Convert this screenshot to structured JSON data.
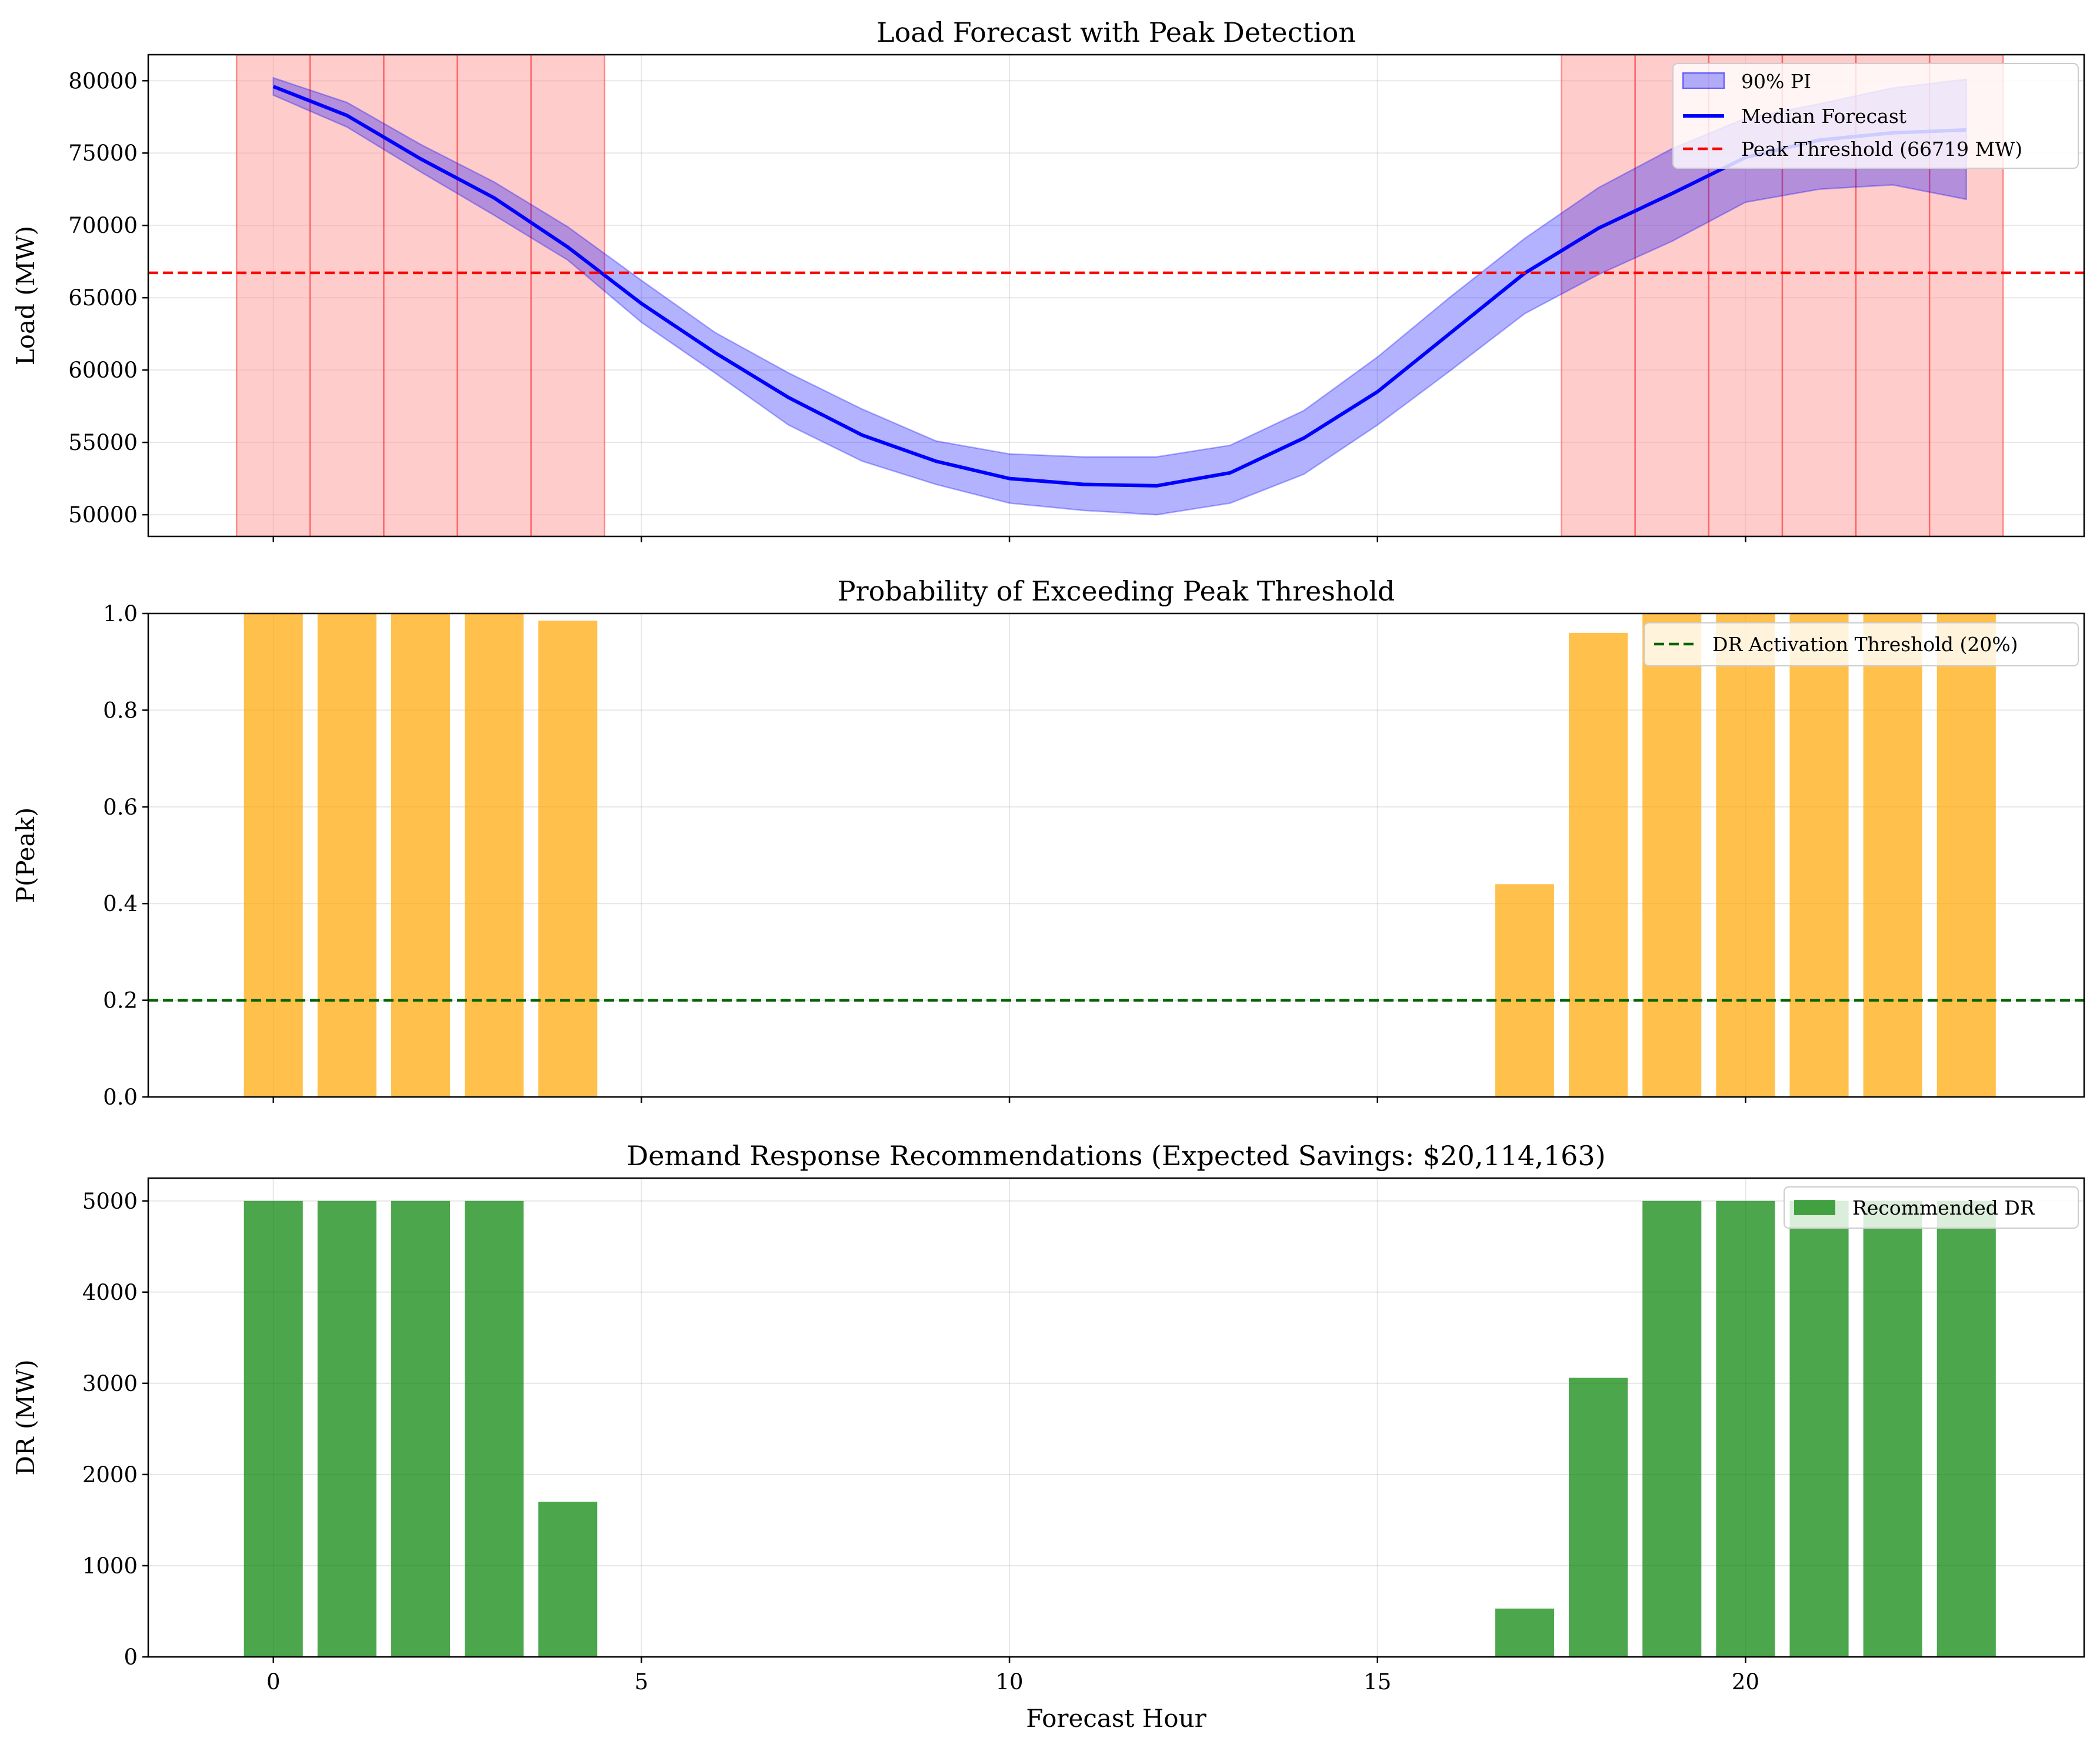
{
  "chart_data": [
    {
      "type": "line",
      "title": "Load Forecast with Peak Detection",
      "xlabel": "",
      "ylabel": "Load (MW)",
      "xlim": [
        -1.7,
        24.6
      ],
      "ylim": [
        48500,
        81800
      ],
      "yticks": [
        50000,
        55000,
        60000,
        65000,
        70000,
        75000,
        80000
      ],
      "xticks": [
        0,
        5,
        10,
        15,
        20
      ],
      "hours": [
        0,
        1,
        2,
        3,
        4,
        5,
        6,
        7,
        8,
        9,
        10,
        11,
        12,
        13,
        14,
        15,
        16,
        17,
        18,
        19,
        20,
        21,
        22,
        23
      ],
      "median": [
        79600,
        77600,
        74600,
        71900,
        68500,
        64600,
        61200,
        58100,
        55500,
        53700,
        52500,
        52100,
        52000,
        52900,
        55300,
        58500,
        62600,
        66700,
        69800,
        72200,
        74700,
        75900,
        76400,
        76600
      ],
      "lower": [
        79000,
        76800,
        73700,
        70700,
        67600,
        63300,
        59800,
        56200,
        53700,
        52100,
        50800,
        50300,
        50000,
        50800,
        52800,
        56200,
        60000,
        63900,
        66600,
        68900,
        71600,
        72500,
        72800,
        71800
      ],
      "upper": [
        80200,
        78500,
        75600,
        73000,
        69900,
        66200,
        62600,
        59800,
        57300,
        55100,
        54200,
        54000,
        54000,
        54800,
        57200,
        60900,
        65100,
        69100,
        72600,
        75300,
        77400,
        78400,
        79500,
        80100
      ],
      "threshold": 66719,
      "peak_hours": [
        0,
        1,
        2,
        3,
        4,
        18,
        19,
        20,
        21,
        22,
        23
      ],
      "legend": [
        "90% PI",
        "Median Forecast",
        "Peak Threshold (66719 MW)"
      ],
      "legend_position": "upper right",
      "colors": {
        "band": "#0000ff",
        "line": "#0000ff",
        "threshold": "#ff0000",
        "peak": "#ff9999",
        "peak_edge": "#ff4d4d"
      }
    },
    {
      "type": "bar",
      "title": "Probability of Exceeding Peak Threshold",
      "xlabel": "",
      "ylabel": "P(Peak)",
      "xlim": [
        -1.7,
        24.6
      ],
      "ylim": [
        0,
        1.0
      ],
      "yticks": [
        0.0,
        0.2,
        0.4,
        0.6,
        0.8,
        1.0
      ],
      "ytick_labels": [
        "0.0",
        "0.2",
        "0.4",
        "0.6",
        "0.8",
        "1.0"
      ],
      "xticks": [
        0,
        5,
        10,
        15,
        20
      ],
      "hours": [
        0,
        1,
        2,
        3,
        4,
        5,
        6,
        7,
        8,
        9,
        10,
        11,
        12,
        13,
        14,
        15,
        16,
        17,
        18,
        19,
        20,
        21,
        22,
        23
      ],
      "values": [
        1.0,
        1.0,
        1.0,
        1.0,
        0.985,
        0,
        0,
        0,
        0,
        0,
        0,
        0,
        0,
        0,
        0,
        0,
        0,
        0.44,
        0.96,
        1.0,
        1.0,
        1.0,
        1.0,
        1.0
      ],
      "threshold": 0.2,
      "legend": [
        "DR Activation Threshold (20%)"
      ],
      "legend_position": "upper right",
      "colors": {
        "bar": "#ffa500",
        "threshold": "#006400"
      }
    },
    {
      "type": "bar",
      "title": "Demand Response Recommendations (Expected Savings: $20,114,163)",
      "xlabel": "Forecast Hour",
      "ylabel": "DR (MW)",
      "xlim": [
        -1.7,
        24.6
      ],
      "ylim": [
        0,
        5250
      ],
      "yticks": [
        0,
        1000,
        2000,
        3000,
        4000,
        5000
      ],
      "xticks": [
        0,
        5,
        10,
        15,
        20
      ],
      "hours": [
        0,
        1,
        2,
        3,
        4,
        5,
        6,
        7,
        8,
        9,
        10,
        11,
        12,
        13,
        14,
        15,
        16,
        17,
        18,
        19,
        20,
        21,
        22,
        23
      ],
      "values": [
        5000,
        5000,
        5000,
        5000,
        1700,
        0,
        0,
        0,
        0,
        0,
        0,
        0,
        0,
        0,
        0,
        0,
        0,
        530,
        3060,
        5000,
        5000,
        5000,
        5000,
        5000
      ],
      "legend": [
        "Recommended DR"
      ],
      "legend_position": "upper right",
      "colors": {
        "bar": "#008000"
      }
    }
  ]
}
